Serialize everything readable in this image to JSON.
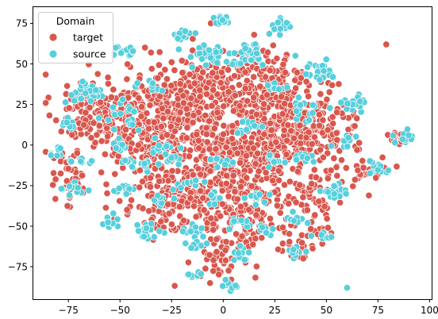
{
  "chart_data": {
    "type": "scatter",
    "title": "",
    "xlabel": "",
    "ylabel": "",
    "xlim": [
      -92,
      101
    ],
    "ylim": [
      -95,
      85
    ],
    "xticks": [
      -75,
      -50,
      -25,
      0,
      25,
      50,
      75,
      100
    ],
    "yticks": [
      -75,
      -50,
      -25,
      0,
      25,
      50,
      75
    ],
    "grid": false,
    "legend": {
      "title": "Domain",
      "placement": "top-left",
      "entries": [
        "target",
        "source"
      ]
    },
    "colors": {
      "target": "#d9574d",
      "source": "#57cfdc"
    },
    "series": [
      {
        "name": "target",
        "color": "#d9574d",
        "blobs": [
          {
            "x": -65,
            "y": 22,
            "sx": 9,
            "sy": 11,
            "n": 110
          },
          {
            "x": -45,
            "y": 12,
            "sx": 10,
            "sy": 14,
            "n": 130
          },
          {
            "x": -25,
            "y": 18,
            "sx": 12,
            "sy": 15,
            "n": 190
          },
          {
            "x": 0,
            "y": 5,
            "sx": 22,
            "sy": 20,
            "n": 420
          },
          {
            "x": 25,
            "y": 8,
            "sx": 14,
            "sy": 16,
            "n": 220
          },
          {
            "x": 45,
            "y": 12,
            "sx": 10,
            "sy": 12,
            "n": 120
          },
          {
            "x": -10,
            "y": -30,
            "sx": 14,
            "sy": 14,
            "n": 160
          },
          {
            "x": 10,
            "y": -45,
            "sx": 10,
            "sy": 12,
            "n": 110
          },
          {
            "x": 0,
            "y": -70,
            "sx": 6,
            "sy": 6,
            "n": 35
          },
          {
            "x": 40,
            "y": -35,
            "sx": 10,
            "sy": 10,
            "n": 70
          },
          {
            "x": -30,
            "y": -35,
            "sx": 10,
            "sy": 8,
            "n": 60
          },
          {
            "x": -75,
            "y": -20,
            "sx": 6,
            "sy": 10,
            "n": 40
          },
          {
            "x": 70,
            "y": -15,
            "sx": 6,
            "sy": 4,
            "n": 25
          },
          {
            "x": 85,
            "y": 5,
            "sx": 4,
            "sy": 2,
            "n": 12
          },
          {
            "x": 35,
            "y": -65,
            "sx": 5,
            "sy": 4,
            "n": 20
          },
          {
            "x": 45,
            "y": -55,
            "sx": 5,
            "sy": 4,
            "n": 15
          },
          {
            "x": -5,
            "y": 40,
            "sx": 8,
            "sy": 10,
            "n": 80
          },
          {
            "x": 20,
            "y": 40,
            "sx": 10,
            "sy": 10,
            "n": 90
          }
        ],
        "points": [
          [
            79,
            62
          ],
          [
            -35,
            57
          ],
          [
            -20,
            52
          ],
          [
            0,
            58
          ],
          [
            -6,
            75
          ],
          [
            15,
            68
          ],
          [
            -82,
            -8
          ],
          [
            -78,
            -5
          ]
        ]
      },
      {
        "name": "source",
        "color": "#57cfdc",
        "blobs": [
          {
            "x": 0,
            "y": 77,
            "sx": 2,
            "sy": 2,
            "n": 14
          },
          {
            "x": 28,
            "y": 73,
            "sx": 3,
            "sy": 2.5,
            "n": 22
          },
          {
            "x": -20,
            "y": 68,
            "sx": 2.5,
            "sy": 2,
            "n": 12
          },
          {
            "x": -48,
            "y": 58,
            "sx": 3,
            "sy": 2,
            "n": 14
          },
          {
            "x": -8,
            "y": 55,
            "sx": 5,
            "sy": 3,
            "n": 28
          },
          {
            "x": 13,
            "y": 55,
            "sx": 4,
            "sy": 4,
            "n": 28
          },
          {
            "x": 45,
            "y": 45,
            "sx": 5,
            "sy": 3,
            "n": 26
          },
          {
            "x": -65,
            "y": 33,
            "sx": 5,
            "sy": 4,
            "n": 28
          },
          {
            "x": -48,
            "y": 17,
            "sx": 5,
            "sy": 4,
            "n": 20
          },
          {
            "x": -35,
            "y": 38,
            "sx": 2.5,
            "sy": 2,
            "n": 8
          },
          {
            "x": 25,
            "y": 35,
            "sx": 3,
            "sy": 2,
            "n": 10
          },
          {
            "x": 63,
            "y": 25,
            "sx": 3,
            "sy": 3,
            "n": 18
          },
          {
            "x": 40,
            "y": 22,
            "sx": 5,
            "sy": 4,
            "n": 18
          },
          {
            "x": -75,
            "y": 13,
            "sx": 2,
            "sy": 2,
            "n": 8
          },
          {
            "x": -30,
            "y": 0,
            "sx": 4,
            "sy": 3,
            "n": 12
          },
          {
            "x": 10,
            "y": 10,
            "sx": 4,
            "sy": 3,
            "n": 12
          },
          {
            "x": 88,
            "y": 4,
            "sx": 2.5,
            "sy": 2,
            "n": 16
          },
          {
            "x": 60,
            "y": 2,
            "sx": 3,
            "sy": 2,
            "n": 10
          },
          {
            "x": -80,
            "y": -4,
            "sx": 2,
            "sy": 2,
            "n": 8
          },
          {
            "x": -68,
            "y": -10,
            "sx": 2.5,
            "sy": 2,
            "n": 10
          },
          {
            "x": -50,
            "y": -1,
            "sx": 2.5,
            "sy": 2,
            "n": 8
          },
          {
            "x": -45,
            "y": -10,
            "sx": 3,
            "sy": 2,
            "n": 8
          },
          {
            "x": -25,
            "y": -10,
            "sx": 3,
            "sy": 2,
            "n": 10
          },
          {
            "x": 0,
            "y": -10,
            "sx": 4,
            "sy": 2,
            "n": 10
          },
          {
            "x": 25,
            "y": -10,
            "sx": 3,
            "sy": 2,
            "n": 10
          },
          {
            "x": -35,
            "y": -12,
            "sx": 2,
            "sy": 2,
            "n": 8
          },
          {
            "x": 40,
            "y": -8,
            "sx": 3,
            "sy": 2,
            "n": 10
          },
          {
            "x": 75,
            "y": -15,
            "sx": 3,
            "sy": 2,
            "n": 14
          },
          {
            "x": -72,
            "y": -27,
            "sx": 3,
            "sy": 2,
            "n": 12
          },
          {
            "x": -48,
            "y": -27,
            "sx": 3,
            "sy": 2,
            "n": 12
          },
          {
            "x": -15,
            "y": -22,
            "sx": 3,
            "sy": 2,
            "n": 10
          },
          {
            "x": 18,
            "y": -33,
            "sx": 3,
            "sy": 2,
            "n": 10
          },
          {
            "x": -30,
            "y": -33,
            "sx": 3,
            "sy": 2,
            "n": 10
          },
          {
            "x": -5,
            "y": -33,
            "sx": 2,
            "sy": 2,
            "n": 8
          },
          {
            "x": 53,
            "y": -30,
            "sx": 3,
            "sy": 3,
            "n": 18
          },
          {
            "x": -55,
            "y": -47,
            "sx": 2.5,
            "sy": 2,
            "n": 10
          },
          {
            "x": -38,
            "y": -53,
            "sx": 3,
            "sy": 2.5,
            "n": 16
          },
          {
            "x": -15,
            "y": -53,
            "sx": 3,
            "sy": 2,
            "n": 12
          },
          {
            "x": 7,
            "y": -47,
            "sx": 3,
            "sy": 2,
            "n": 10
          },
          {
            "x": 20,
            "y": -53,
            "sx": 3,
            "sy": 2,
            "n": 12
          },
          {
            "x": 35,
            "y": -45,
            "sx": 2.5,
            "sy": 2,
            "n": 10
          },
          {
            "x": 48,
            "y": -55,
            "sx": 2.5,
            "sy": 2,
            "n": 10
          },
          {
            "x": -12,
            "y": -62,
            "sx": 3,
            "sy": 2,
            "n": 12
          },
          {
            "x": 10,
            "y": -67,
            "sx": 3,
            "sy": 2,
            "n": 12
          },
          {
            "x": 35,
            "y": -65,
            "sx": 2,
            "sy": 2,
            "n": 10
          },
          {
            "x": -14,
            "y": -80,
            "sx": 2,
            "sy": 1.2,
            "n": 10
          },
          {
            "x": 5,
            "y": -87,
            "sx": 2,
            "sy": 2,
            "n": 12
          }
        ],
        "points": [
          [
            60,
            -88
          ],
          [
            -52,
            60
          ],
          [
            35,
            55
          ]
        ]
      }
    ]
  }
}
